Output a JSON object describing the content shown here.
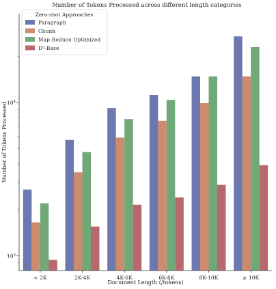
{
  "chart_data": {
    "type": "bar",
    "title": "Number of Tokens Processed across different length categories",
    "xlabel": "Document Length (/tokens)",
    "ylabel": "Number of Tokens Processed",
    "yscale": "log",
    "ylim": [
      800,
      38000
    ],
    "grid": false,
    "legend": {
      "title": "Zero-shot Approaches",
      "placement": "top-left"
    },
    "categories": [
      "< 2K",
      "2K-4K",
      "4K-6K",
      "6K-8K",
      "8K-10K",
      "≥ 10K"
    ],
    "y_ticks": [
      {
        "value": 1000,
        "base": "10",
        "exp": "3"
      },
      {
        "value": 10000,
        "base": "10",
        "exp": "4"
      }
    ],
    "series": [
      {
        "name": "Paragraph",
        "color": "#6c78ae",
        "values": [
          2700,
          5700,
          9200,
          11200,
          14800,
          27000
        ]
      },
      {
        "name": "Chunk",
        "color": "#cc8b6f",
        "values": [
          1650,
          3500,
          5900,
          7600,
          9900,
          14800
        ]
      },
      {
        "name": "Map-Reduce Optimized",
        "color": "#70a878",
        "values": [
          2200,
          4750,
          7800,
          10400,
          14800,
          23000
        ]
      },
      {
        "name": "D³-Base",
        "color": "#b8696d",
        "values": [
          940,
          1550,
          2150,
          2400,
          2900,
          3900
        ]
      }
    ]
  }
}
